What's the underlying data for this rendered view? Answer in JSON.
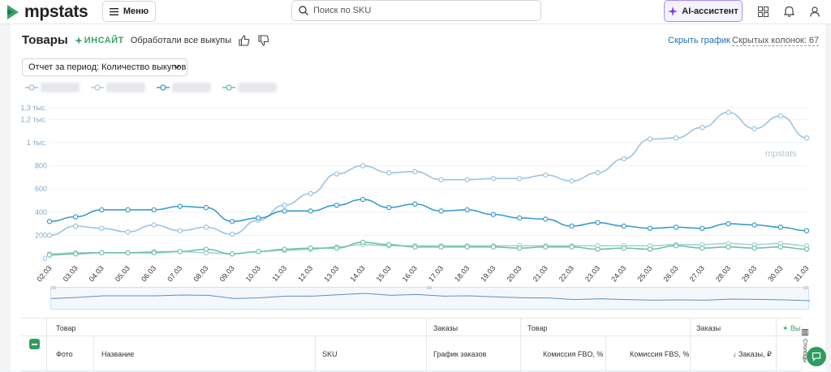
{
  "header": {
    "logo_text": "mpstats",
    "menu_label": "Меню",
    "search_placeholder": "Поиск по SKU",
    "ai_label": "AI-ассистент",
    "brand_color": "#3aa36b"
  },
  "page": {
    "title": "Товары",
    "insight_label": "ИНСАЙТ",
    "insight_text": "Обработали все выкупы",
    "hide_chart": "Скрыть график",
    "hidden_columns": "Скрытых колонок: 67",
    "period_select": "Отчет за период: Количество выкупов"
  },
  "chart_data": {
    "type": "line",
    "watermark": "mpstats",
    "y_ticks": [
      "0",
      "200",
      "400",
      "600",
      "800",
      "1 тыс.",
      "1,2 тыс.",
      "1,3 тыс."
    ],
    "ylim": [
      0,
      1300
    ],
    "categories": [
      "02.03",
      "03.03",
      "04.03",
      "05.03",
      "06.03",
      "07.03",
      "08.03",
      "09.03",
      "10.03",
      "11.03",
      "12.03",
      "13.03",
      "14.03",
      "15.03",
      "16.03",
      "17.03",
      "18.03",
      "19.03",
      "20.03",
      "21.03",
      "22.03",
      "23.03",
      "24.03",
      "25.03",
      "26.03",
      "27.03",
      "28.03",
      "29.03",
      "30.03",
      "31.03"
    ],
    "series": [
      {
        "color": "#9cc3df",
        "values": [
          200,
          280,
          260,
          230,
          290,
          240,
          270,
          210,
          330,
          460,
          560,
          730,
          800,
          740,
          750,
          680,
          680,
          690,
          690,
          720,
          670,
          740,
          860,
          1030,
          1040,
          1130,
          1260,
          1120,
          1230,
          1040
        ]
      },
      {
        "color": "#a8cfd8",
        "values": [
          40,
          50,
          50,
          50,
          60,
          60,
          50,
          40,
          60,
          70,
          80,
          100,
          120,
          110,
          110,
          110,
          110,
          110,
          110,
          110,
          110,
          110,
          110,
          110,
          120,
          120,
          130,
          120,
          130,
          110
        ]
      },
      {
        "color": "#3b9ccc",
        "values": [
          320,
          360,
          420,
          420,
          420,
          450,
          440,
          320,
          350,
          410,
          410,
          460,
          510,
          440,
          470,
          410,
          420,
          380,
          350,
          340,
          280,
          310,
          280,
          260,
          270,
          260,
          300,
          290,
          270,
          240
        ]
      },
      {
        "color": "#6cc4a0",
        "values": [
          30,
          40,
          50,
          50,
          50,
          60,
          80,
          40,
          60,
          80,
          90,
          90,
          140,
          120,
          100,
          100,
          100,
          100,
          90,
          100,
          100,
          80,
          90,
          80,
          110,
          90,
          100,
          90,
          100,
          80
        ]
      }
    ]
  },
  "table": {
    "group_headers": [
      "Товар",
      "Заказы",
      "Товар",
      "Заказы",
      "Вы"
    ],
    "columns": [
      "Фото",
      "Название",
      "SKU",
      "График заказов",
      "Комиссия FBO, %",
      "Комиссия FBS, %",
      "↓ Заказы, ₽"
    ],
    "side_label": "Столбцы"
  }
}
